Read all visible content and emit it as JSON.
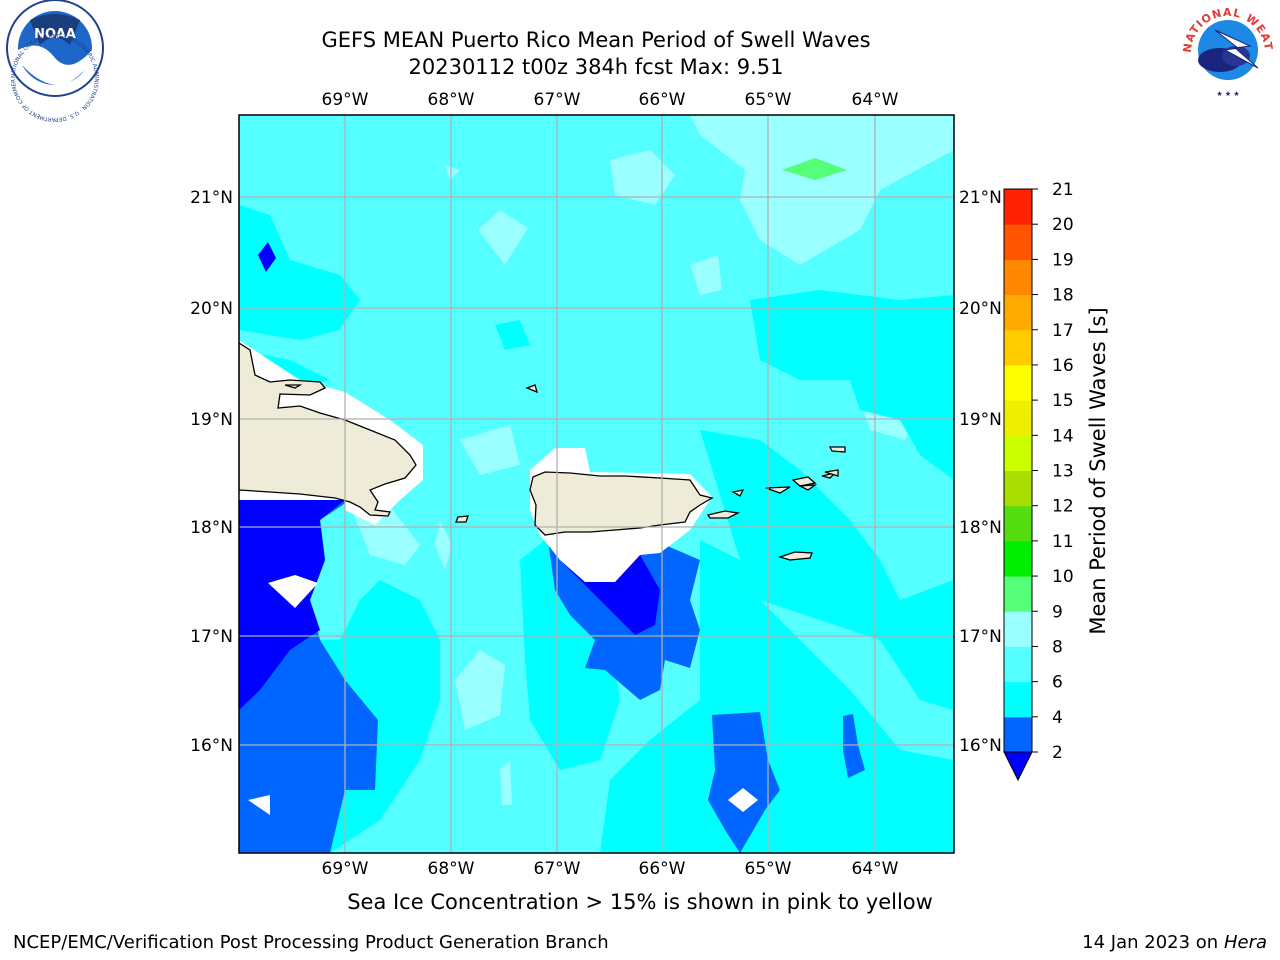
{
  "title": {
    "line1": "GEFS MEAN Puerto Rico Mean Period of Swell Waves",
    "line2": "20230112 t00z 384h fcst   Max: 9.51"
  },
  "map": {
    "lon_labels": [
      "69°W",
      "68°W",
      "67°W",
      "66°W",
      "65°W",
      "64°W"
    ],
    "lat_labels": [
      "21°N",
      "20°N",
      "19°N",
      "18°N",
      "17°N",
      "16°N"
    ],
    "land_color": "#eeecd9",
    "background_contour_color": "#55ffff"
  },
  "colorbar": {
    "title": "Mean Period of Swell Waves [s]",
    "ticks": [
      "2",
      "4",
      "6",
      "8",
      "9",
      "10",
      "11",
      "12",
      "13",
      "14",
      "15",
      "16",
      "17",
      "18",
      "19",
      "20",
      "21"
    ],
    "colors": [
      "#0000ff",
      "#0066ff",
      "#00ffff",
      "#55ffff",
      "#99ffff",
      "#55ff77",
      "#00ee00",
      "#55dd11",
      "#aadd00",
      "#ccff00",
      "#eeee00",
      "#ffff00",
      "#ffcc00",
      "#ffaa00",
      "#ff8800",
      "#ff5500",
      "#ff2200",
      "#ff0000"
    ]
  },
  "caption": "Sea Ice Concentration > 15% is shown in pink to yellow",
  "footer": {
    "left": "NCEP/EMC/Verification Post Processing Product Generation Branch",
    "right_date": "14 Jan 2023 on ",
    "right_host": "Hera"
  },
  "logos": {
    "noaa_text": "NOAA",
    "noaa_ring_text": "NATIONAL OCEANIC AND ATMOSPHERIC ADMINISTRATION · U.S. DEPARTMENT OF COMMERCE",
    "nws_ring_text": "NATIONAL WEATHER SERVICE"
  }
}
